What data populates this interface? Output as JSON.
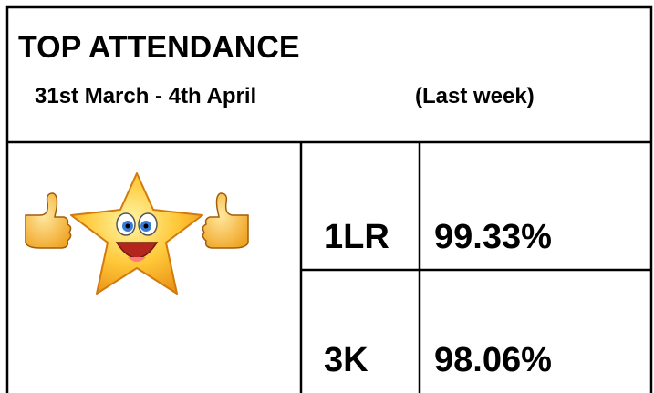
{
  "header": {
    "title": "TOP ATTENDANCE",
    "subtitle": "31st March - 4th April",
    "note": "(Last week)"
  },
  "table": {
    "rows": [
      [
        "1LR",
        "99.33%"
      ],
      [
        "3K",
        "98.06%"
      ]
    ]
  }
}
